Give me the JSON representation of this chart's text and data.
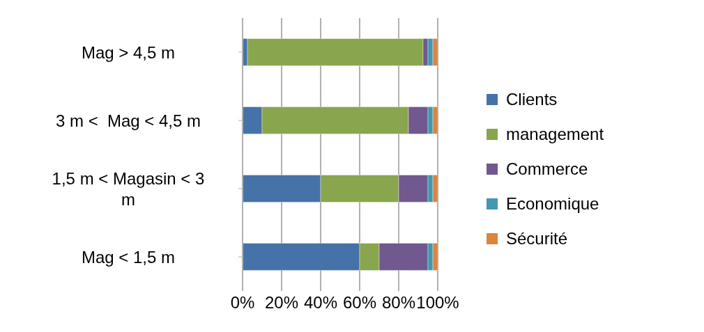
{
  "chart_data": {
    "type": "bar",
    "orientation": "horizontal",
    "stacked": true,
    "categories": [
      "Mag > 4,5 m",
      "3 m <  Mag < 4,5 m",
      "1,5 m < Magasin < 3 m",
      "Mag < 1,5 m"
    ],
    "series": [
      {
        "name": "Clients",
        "color": "#4572a7",
        "values": [
          2.5,
          10,
          40,
          60
        ]
      },
      {
        "name": "management",
        "color": "#89a54e",
        "values": [
          90,
          75,
          40,
          10
        ]
      },
      {
        "name": "Commerce",
        "color": "#71588f",
        "values": [
          2.5,
          10,
          15,
          25
        ]
      },
      {
        "name": "Economique",
        "color": "#4198af",
        "values": [
          2.5,
          2.5,
          2.5,
          2.5
        ]
      },
      {
        "name": "Sécurité",
        "color": "#db843d",
        "values": [
          2.5,
          2.5,
          2.5,
          2.5
        ]
      }
    ],
    "xlim": [
      0,
      100
    ],
    "xticks": [
      {
        "value": 0,
        "label": "0%"
      },
      {
        "value": 20,
        "label": "20%"
      },
      {
        "value": 40,
        "label": "40%"
      },
      {
        "value": 60,
        "label": "60%"
      },
      {
        "value": 80,
        "label": "80%"
      },
      {
        "value": 100,
        "label": "100%"
      }
    ],
    "grid": "x",
    "legend": "right"
  }
}
